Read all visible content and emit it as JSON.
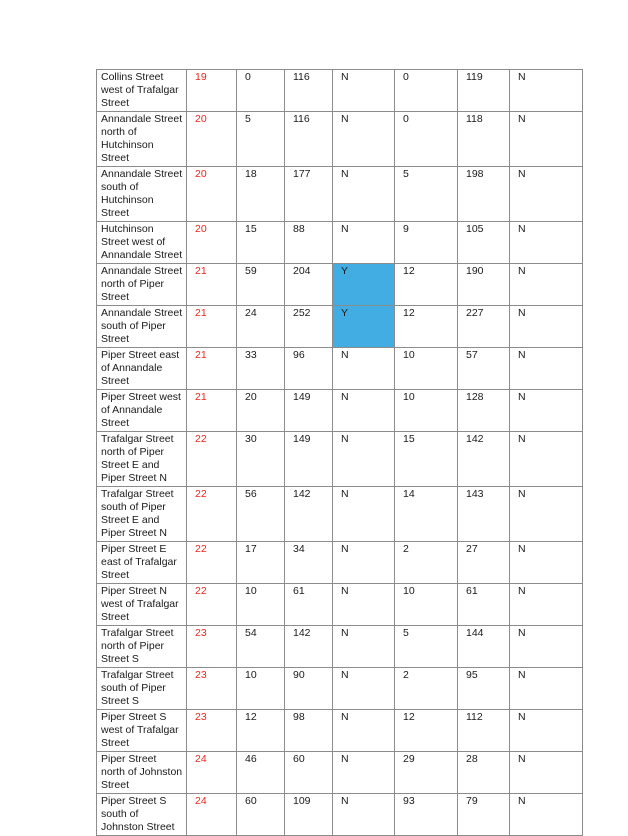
{
  "rows": [
    {
      "location": "Collins Street west of Trafalgar Street",
      "id": "19",
      "c1": "0",
      "c2": "116",
      "c3": "N",
      "c4": "0",
      "c5": "119",
      "c6": "N",
      "hl": false
    },
    {
      "location": "Annandale Street north of Hutchinson Street",
      "id": "20",
      "c1": "5",
      "c2": "116",
      "c3": "N",
      "c4": "0",
      "c5": "118",
      "c6": "N",
      "hl": false
    },
    {
      "location": "Annandale Street south of Hutchinson Street",
      "id": "20",
      "c1": "18",
      "c2": "177",
      "c3": "N",
      "c4": "5",
      "c5": "198",
      "c6": "N",
      "hl": false
    },
    {
      "location": "Hutchinson Street west of Annandale Street",
      "id": "20",
      "c1": "15",
      "c2": "88",
      "c3": "N",
      "c4": "9",
      "c5": "105",
      "c6": "N",
      "hl": false
    },
    {
      "location": "Annandale Street north of Piper Street",
      "id": "21",
      "c1": "59",
      "c2": "204",
      "c3": "Y",
      "c4": "12",
      "c5": "190",
      "c6": "N",
      "hl": true
    },
    {
      "location": "Annandale Street south of Piper Street",
      "id": "21",
      "c1": "24",
      "c2": "252",
      "c3": "Y",
      "c4": "12",
      "c5": "227",
      "c6": "N",
      "hl": true
    },
    {
      "location": "Piper Street east of Annandale Street",
      "id": "21",
      "c1": "33",
      "c2": "96",
      "c3": "N",
      "c4": "10",
      "c5": "57",
      "c6": "N",
      "hl": false
    },
    {
      "location": "Piper Street west of Annandale Street",
      "id": "21",
      "c1": "20",
      "c2": "149",
      "c3": "N",
      "c4": "10",
      "c5": "128",
      "c6": "N",
      "hl": false
    },
    {
      "location": "Trafalgar Street north of Piper Street E and Piper Street N",
      "id": "22",
      "c1": "30",
      "c2": "149",
      "c3": "N",
      "c4": "15",
      "c5": "142",
      "c6": "N",
      "hl": false
    },
    {
      "location": "Trafalgar Street south of Piper Street E and Piper Street N",
      "id": "22",
      "c1": "56",
      "c2": "142",
      "c3": "N",
      "c4": "14",
      "c5": "143",
      "c6": "N",
      "hl": false
    },
    {
      "location": "Piper Street E east of Trafalgar Street",
      "id": "22",
      "c1": "17",
      "c2": "34",
      "c3": "N",
      "c4": "2",
      "c5": "27",
      "c6": "N",
      "hl": false
    },
    {
      "location": "Piper Street N west of Trafalgar Street",
      "id": "22",
      "c1": "10",
      "c2": "61",
      "c3": "N",
      "c4": "10",
      "c5": "61",
      "c6": "N",
      "hl": false
    },
    {
      "location": "Trafalgar Street north of Piper Street S",
      "id": "23",
      "c1": "54",
      "c2": "142",
      "c3": "N",
      "c4": "5",
      "c5": "144",
      "c6": "N",
      "hl": false
    },
    {
      "location": "Trafalgar Street south of Piper Street S",
      "id": "23",
      "c1": "10",
      "c2": "90",
      "c3": "N",
      "c4": "2",
      "c5": "95",
      "c6": "N",
      "hl": false
    },
    {
      "location": "Piper Street S west of Trafalgar Street",
      "id": "23",
      "c1": "12",
      "c2": "98",
      "c3": "N",
      "c4": "12",
      "c5": "112",
      "c6": "N",
      "hl": false
    },
    {
      "location": "Piper Street north of Johnston Street",
      "id": "24",
      "c1": "46",
      "c2": "60",
      "c3": "N",
      "c4": "29",
      "c5": "28",
      "c6": "N",
      "hl": false
    },
    {
      "location": "Piper Street S south of Johnston Street",
      "id": "24",
      "c1": "60",
      "c2": "109",
      "c3": "N",
      "c4": "93",
      "c5": "79",
      "c6": "N",
      "hl": false
    }
  ],
  "highlight_color": "#42ade2",
  "id_color": "#e8281e"
}
